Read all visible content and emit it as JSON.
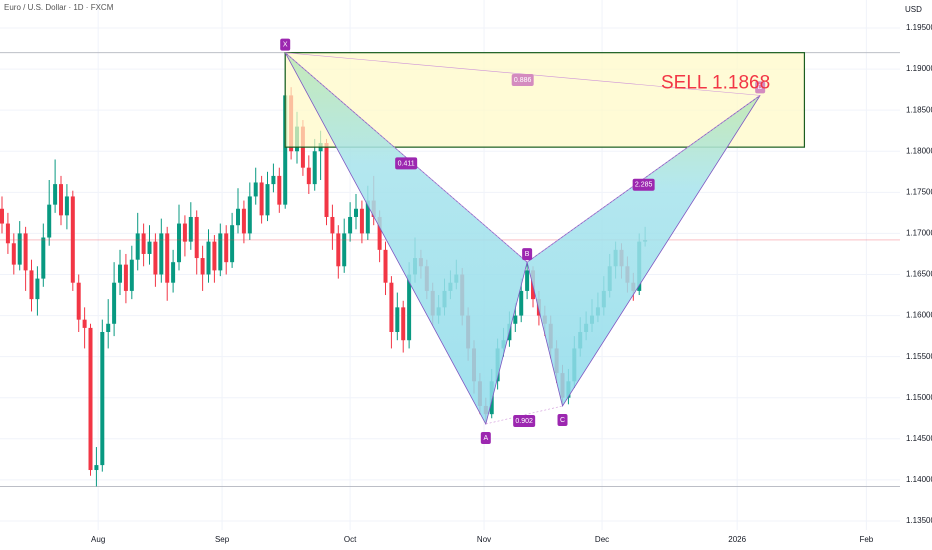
{
  "chart_data": {
    "type": "candlestick",
    "title": "Euro / U.S. Dollar · 1D · FXCM",
    "y_axis_label": "USD",
    "up_color": "#089981",
    "down_color": "#f23645",
    "open": [
      1.173,
      1.1712,
      1.1688,
      1.1662,
      1.17,
      1.1655,
      1.162,
      1.1645,
      1.1695,
      1.1735,
      1.176,
      1.1722,
      1.1745,
      1.164,
      1.1595,
      1.1585,
      1.1412,
      1.1418,
      1.158,
      1.159,
      1.164,
      1.1662,
      1.163,
      1.1668,
      1.17,
      1.1675,
      1.169,
      1.165,
      1.17,
      1.164,
      1.1665,
      1.1712,
      1.169,
      1.172,
      1.167,
      1.165,
      1.169,
      1.1655,
      1.17,
      1.1665,
      1.171,
      1.173,
      1.17,
      1.1745,
      1.1762,
      1.1722,
      1.176,
      1.177,
      1.1735,
      1.1868,
      1.18,
      1.183,
      1.178,
      1.176,
      1.18,
      1.181,
      1.172,
      1.17,
      1.166,
      1.17,
      1.172,
      1.173,
      1.17,
      1.174,
      1.172,
      1.168,
      1.164,
      1.158,
      1.161,
      1.157,
      1.165,
      1.167,
      1.166,
      1.163,
      1.16,
      1.161,
      1.163,
      1.164,
      1.165,
      1.16,
      1.156,
      1.152,
      1.149,
      1.148,
      1.152,
      1.156,
      1.157,
      1.159,
      1.16,
      1.163,
      1.1655,
      1.162,
      1.16,
      1.159,
      1.156,
      1.153,
      1.15,
      1.152,
      1.156,
      1.158,
      1.159,
      1.16,
      1.161,
      1.163,
      1.166,
      1.168,
      1.166,
      1.164,
      1.163,
      1.169
    ],
    "high": [
      1.1745,
      1.1725,
      1.17,
      1.1715,
      1.1708,
      1.1668,
      1.166,
      1.1712,
      1.1765,
      1.179,
      1.177,
      1.176,
      1.1752,
      1.165,
      1.161,
      1.159,
      1.144,
      1.1595,
      1.162,
      1.1665,
      1.168,
      1.1675,
      1.1685,
      1.1725,
      1.1712,
      1.171,
      1.17,
      1.1718,
      1.1708,
      1.168,
      1.1735,
      1.1722,
      1.1738,
      1.1728,
      1.1685,
      1.1705,
      1.1698,
      1.1712,
      1.171,
      1.1725,
      1.1755,
      1.174,
      1.1762,
      1.178,
      1.177,
      1.1775,
      1.1785,
      1.178,
      1.192,
      1.1878,
      1.1848,
      1.1838,
      1.1795,
      1.1815,
      1.1825,
      1.1815,
      1.1735,
      1.171,
      1.1718,
      1.1738,
      1.1748,
      1.174,
      1.1758,
      1.177,
      1.1728,
      1.169,
      1.1648,
      1.1628,
      1.1618,
      1.1665,
      1.1695,
      1.168,
      1.1668,
      1.164,
      1.1625,
      1.1645,
      1.1655,
      1.1668,
      1.1658,
      1.161,
      1.157,
      1.153,
      1.15,
      1.1535,
      1.1572,
      1.1585,
      1.1605,
      1.1615,
      1.1645,
      1.1665,
      1.166,
      1.163,
      1.1612,
      1.16,
      1.157,
      1.154,
      1.1535,
      1.1575,
      1.1598,
      1.1605,
      1.162,
      1.1628,
      1.1648,
      1.1675,
      1.169,
      1.1688,
      1.1672,
      1.1652,
      1.17,
      1.1708
    ],
    "low": [
      1.17,
      1.1675,
      1.165,
      1.1655,
      1.163,
      1.1605,
      1.16,
      1.1635,
      1.1685,
      1.1725,
      1.171,
      1.1705,
      1.163,
      1.158,
      1.156,
      1.1405,
      1.1392,
      1.141,
      1.156,
      1.1575,
      1.1625,
      1.1615,
      1.162,
      1.1655,
      1.166,
      1.1662,
      1.1635,
      1.164,
      1.1618,
      1.1628,
      1.1655,
      1.1672,
      1.168,
      1.165,
      1.163,
      1.164,
      1.164,
      1.1648,
      1.165,
      1.1658,
      1.17,
      1.1688,
      1.1692,
      1.1735,
      1.1712,
      1.1715,
      1.175,
      1.1725,
      1.173,
      1.179,
      1.1785,
      1.177,
      1.1748,
      1.1752,
      1.1765,
      1.171,
      1.168,
      1.1645,
      1.1652,
      1.169,
      1.1705,
      1.1688,
      1.1692,
      1.171,
      1.1665,
      1.1625,
      1.156,
      1.157,
      1.1555,
      1.156,
      1.164,
      1.1645,
      1.162,
      1.1588,
      1.159,
      1.16,
      1.162,
      1.1632,
      1.1588,
      1.1545,
      1.1505,
      1.148,
      1.1468,
      1.1475,
      1.151,
      1.155,
      1.1562,
      1.158,
      1.1592,
      1.162,
      1.161,
      1.1588,
      1.1575,
      1.1548,
      1.1518,
      1.149,
      1.1492,
      1.1512,
      1.155,
      1.157,
      1.158,
      1.1592,
      1.16,
      1.1622,
      1.1645,
      1.1645,
      1.1628,
      1.1618,
      1.1625,
      1.1684
    ],
    "close": [
      1.1712,
      1.1688,
      1.1662,
      1.17,
      1.1655,
      1.162,
      1.1645,
      1.1695,
      1.1735,
      1.176,
      1.1722,
      1.1745,
      1.164,
      1.1595,
      1.1585,
      1.1412,
      1.1418,
      1.158,
      1.159,
      1.164,
      1.1662,
      1.163,
      1.1668,
      1.17,
      1.1675,
      1.169,
      1.165,
      1.17,
      1.164,
      1.1665,
      1.1712,
      1.169,
      1.172,
      1.167,
      1.165,
      1.169,
      1.1655,
      1.17,
      1.1665,
      1.171,
      1.173,
      1.17,
      1.1745,
      1.1762,
      1.1722,
      1.176,
      1.177,
      1.1735,
      1.1868,
      1.18,
      1.183,
      1.178,
      1.176,
      1.18,
      1.181,
      1.172,
      1.17,
      1.166,
      1.17,
      1.172,
      1.173,
      1.17,
      1.174,
      1.172,
      1.168,
      1.164,
      1.158,
      1.161,
      1.157,
      1.165,
      1.167,
      1.166,
      1.163,
      1.16,
      1.161,
      1.163,
      1.164,
      1.165,
      1.16,
      1.156,
      1.152,
      1.149,
      1.148,
      1.152,
      1.156,
      1.157,
      1.159,
      1.16,
      1.163,
      1.1655,
      1.162,
      1.16,
      1.159,
      1.156,
      1.153,
      1.15,
      1.152,
      1.156,
      1.158,
      1.159,
      1.16,
      1.161,
      1.163,
      1.166,
      1.168,
      1.166,
      1.164,
      1.163,
      1.169,
      1.1692
    ],
    "xlim": [
      -0.34,
      152.2
    ],
    "xticks": [
      {
        "value": 16.3,
        "label": "Aug"
      },
      {
        "value": 37.3,
        "label": "Sep"
      },
      {
        "value": 59,
        "label": "Oct"
      },
      {
        "value": 81.7,
        "label": "Nov"
      },
      {
        "value": 101.7,
        "label": "Dec"
      },
      {
        "value": 124.6,
        "label": "2026"
      },
      {
        "value": 146.5,
        "label": "Feb"
      }
    ],
    "ylim": [
      1.1339,
      1.19841
    ],
    "yticks": [
      {
        "value": 1.135,
        "label": "1.13500"
      },
      {
        "value": 1.14,
        "label": "1.14000"
      },
      {
        "value": 1.145,
        "label": "1.14500"
      },
      {
        "value": 1.15,
        "label": "1.15000"
      },
      {
        "value": 1.155,
        "label": "1.15500"
      },
      {
        "value": 1.16,
        "label": "1.16000"
      },
      {
        "value": 1.165,
        "label": "1.16500"
      },
      {
        "value": 1.17,
        "label": "1.17000"
      },
      {
        "value": 1.175,
        "label": "1.17500"
      },
      {
        "value": 1.18,
        "label": "1.18000"
      },
      {
        "value": 1.185,
        "label": "1.18500"
      },
      {
        "value": 1.19,
        "label": "1.19000"
      },
      {
        "value": 1.195,
        "label": "1.19500"
      }
    ],
    "grid": true,
    "horizontal_lines": [
      1.192,
      1.1392
    ],
    "pattern": {
      "points": [
        {
          "label": "X",
          "x": 48,
          "y": 1.192
        },
        {
          "label": "A",
          "x": 82,
          "y": 1.1468
        },
        {
          "label": "B",
          "x": 89,
          "y": 1.1665
        },
        {
          "label": "C",
          "x": 95,
          "y": 1.149
        },
        {
          "label": "D",
          "x": 128.5,
          "y": 1.1868
        }
      ],
      "ratios": [
        {
          "value": 0.411,
          "from": "X",
          "to": "B"
        },
        {
          "value": 0.886,
          "from": "X",
          "to": "D"
        },
        {
          "value": 0.902,
          "from": "A",
          "to": "C"
        },
        {
          "value": 2.285,
          "from": "B",
          "to": "D"
        }
      ],
      "box": {
        "x": [
          48,
          136
        ],
        "y": [
          1.1805,
          1.192
        ]
      },
      "annotation": "SELL 1.1868"
    }
  }
}
